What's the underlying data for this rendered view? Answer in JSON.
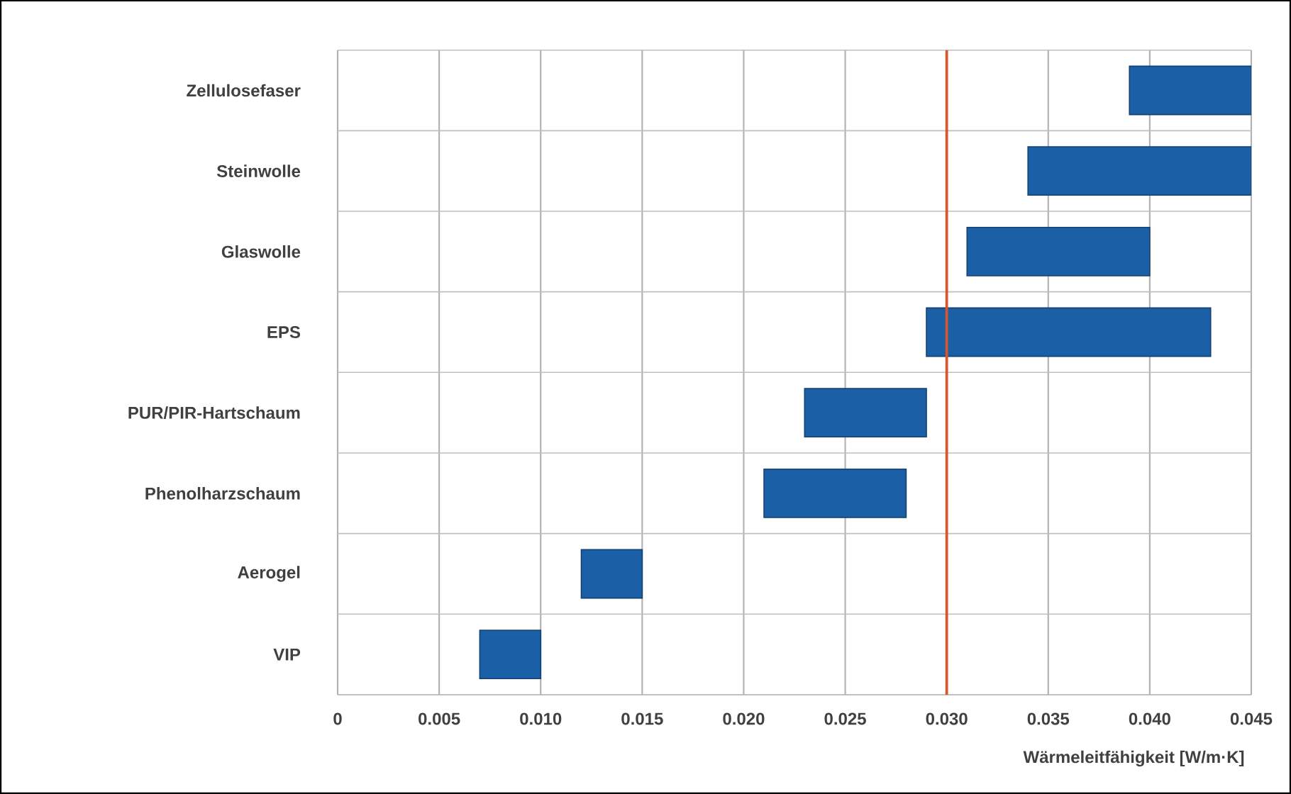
{
  "chart_data": {
    "type": "bar",
    "orientation": "horizontal",
    "xlabel": "Wärmeleitfähigkeit [W/m·K]",
    "categories": [
      "Zellulosefaser",
      "Steinwolle",
      "Glaswolle",
      "EPS",
      "PUR/PIR-Hartschaum",
      "Phenolharzschaum",
      "Aerogel",
      "VIP"
    ],
    "base": [
      0.039,
      0.034,
      0.031,
      0.029,
      0.023,
      0.021,
      0.012,
      0.007
    ],
    "values": [
      0.006,
      0.011,
      0.009,
      0.014,
      0.006,
      0.007,
      0.003,
      0.003
    ],
    "color": "#1b5fa6",
    "xlim": [
      0,
      0.045
    ],
    "xticks": [
      0,
      0.005,
      {
        "value": 0.01,
        "label": "0.010"
      },
      0.015,
      {
        "value": 0.02,
        "label": "0.020"
      },
      0.025,
      {
        "value": 0.03,
        "label": "0.030"
      },
      0.035,
      {
        "value": 0.04,
        "label": "0.040"
      },
      0.045
    ],
    "ref_lines": [
      {
        "axis": "x",
        "value": 0.03,
        "color": "#d9542b"
      }
    ],
    "grid": true
  }
}
